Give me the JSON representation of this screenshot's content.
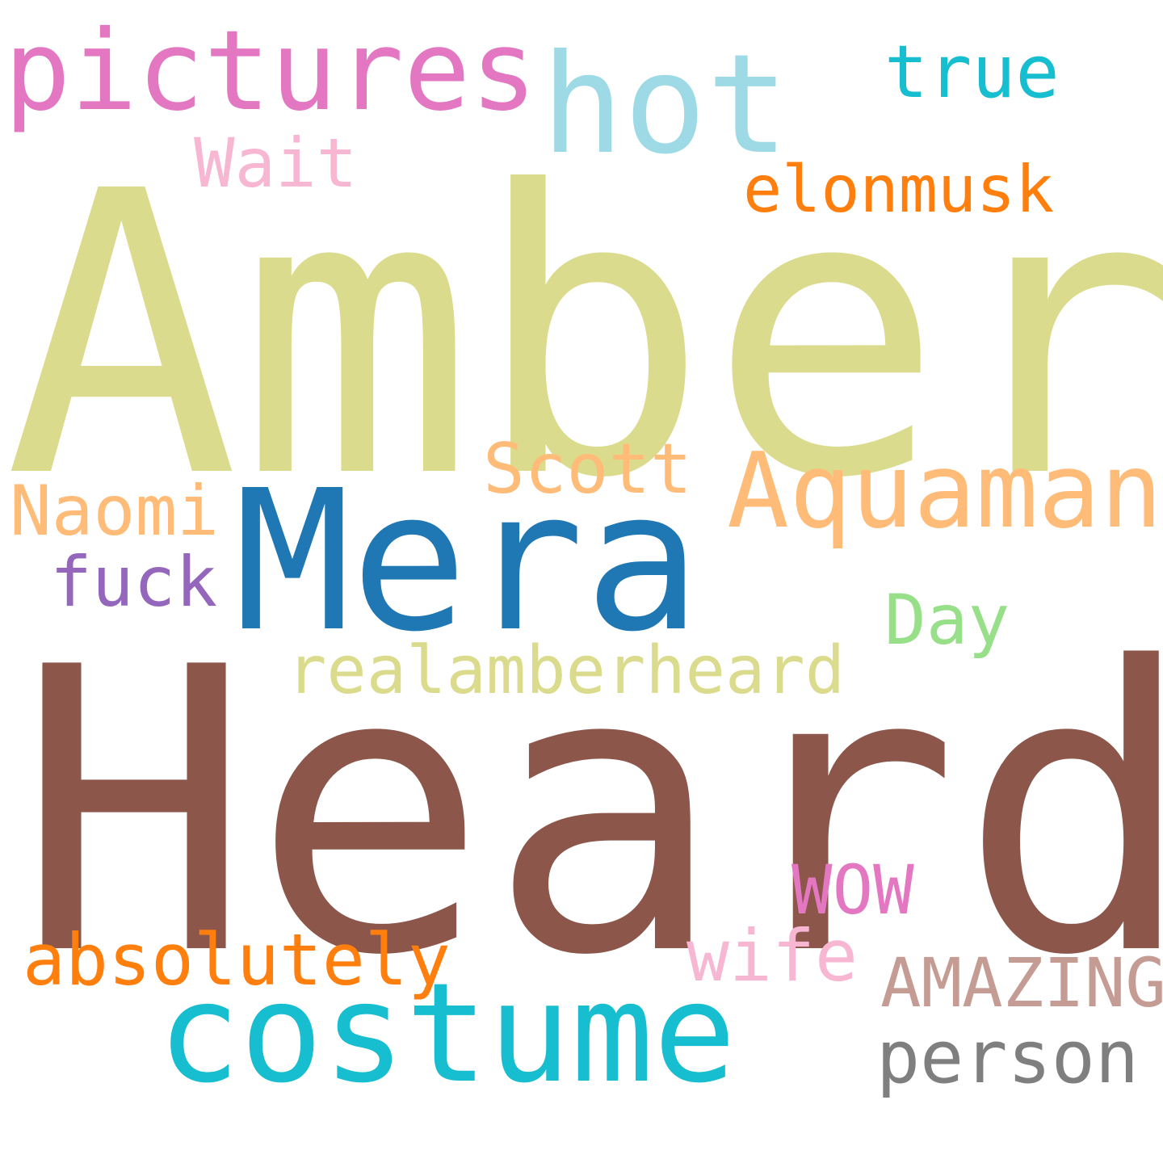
{
  "words": [
    {
      "id": "amber",
      "text": "Amber",
      "color": "#dbdb8d"
    },
    {
      "id": "heard",
      "text": "Heard",
      "color": "#8c564b"
    },
    {
      "id": "pictures",
      "text": "pictures",
      "color": "#e377c2"
    },
    {
      "id": "hot",
      "text": "hot",
      "color": "#9edae5"
    },
    {
      "id": "true",
      "text": "true",
      "color": "#17becf"
    },
    {
      "id": "wait",
      "text": "Wait",
      "color": "#f7b6d2"
    },
    {
      "id": "elonmusk",
      "text": "elonmusk",
      "color": "#ff7f0e"
    },
    {
      "id": "aquaman",
      "text": "Aquaman",
      "color": "#ffbb78"
    },
    {
      "id": "mera",
      "text": "Mera",
      "color": "#1f77b4"
    },
    {
      "id": "scott",
      "text": "Scott",
      "color": "#ffbb78"
    },
    {
      "id": "naomi",
      "text": "Naomi",
      "color": "#ffbb78"
    },
    {
      "id": "fuck",
      "text": "fuck",
      "color": "#9467bd"
    },
    {
      "id": "day",
      "text": "Day",
      "color": "#98df8a"
    },
    {
      "id": "realamberheard",
      "text": "realamberheard",
      "color": "#dbdb8d"
    },
    {
      "id": "wow",
      "text": "WOW",
      "color": "#e377c2"
    },
    {
      "id": "absolutely",
      "text": "absolutely",
      "color": "#ff7f0e"
    },
    {
      "id": "wife",
      "text": "wife",
      "color": "#f7b6d2"
    },
    {
      "id": "amazing",
      "text": "AMAZING",
      "color": "#c49c94"
    },
    {
      "id": "costume",
      "text": "costume",
      "color": "#17becf"
    },
    {
      "id": "person",
      "text": "person",
      "color": "#7f7f7f"
    }
  ]
}
